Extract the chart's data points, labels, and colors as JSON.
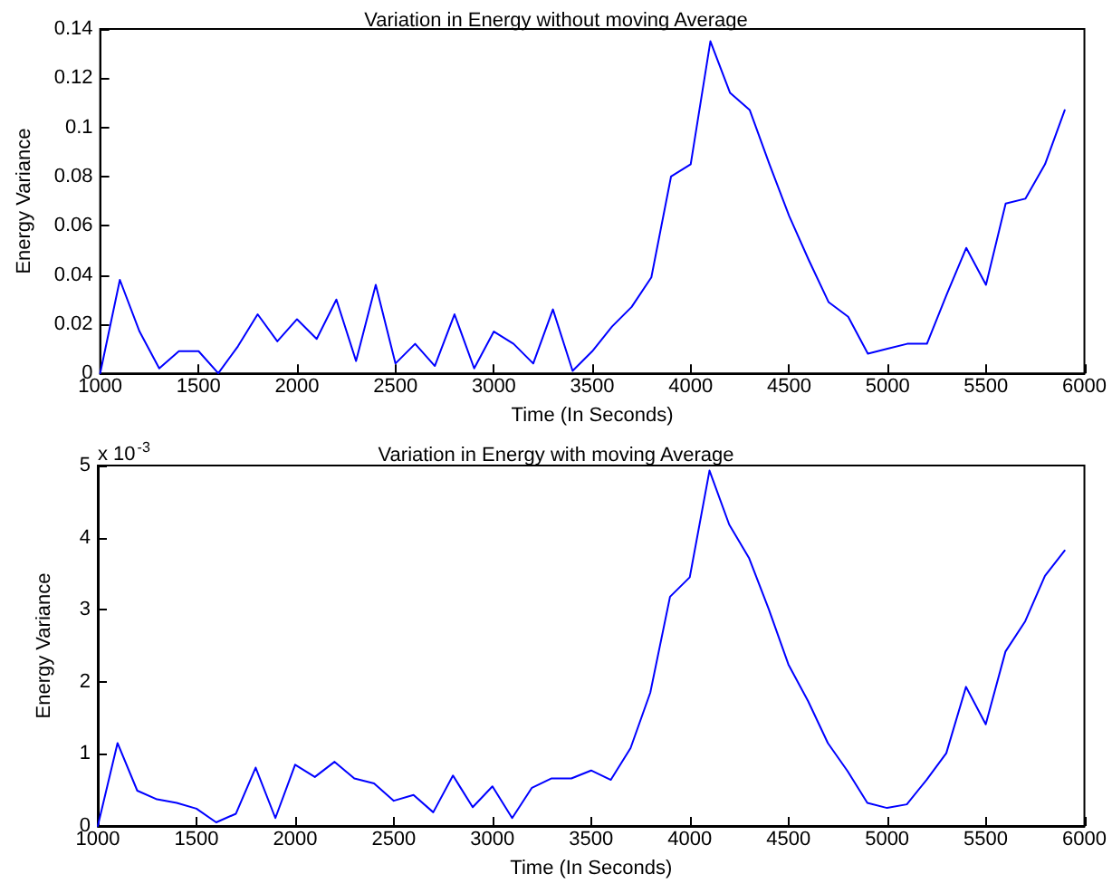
{
  "chart_data": [
    {
      "type": "line",
      "title": "Variation in Energy without moving Average",
      "xlabel": "Time (In Seconds)",
      "ylabel": "Energy Variance",
      "x": [
        1000,
        1100,
        1200,
        1300,
        1400,
        1500,
        1600,
        1700,
        1800,
        1900,
        2000,
        2100,
        2200,
        2300,
        2400,
        2500,
        2600,
        2700,
        2800,
        2900,
        3000,
        3100,
        3200,
        3300,
        3400,
        3500,
        3600,
        3700,
        3800,
        3900,
        4000,
        4100,
        4200,
        4300,
        4400,
        4500,
        4600,
        4700,
        4800,
        4900,
        5000,
        5100,
        5200,
        5300,
        5400,
        5500,
        5600,
        5700,
        5800,
        5900
      ],
      "series": [
        {
          "color": "#0000ff",
          "values": [
            0,
            0.038,
            0.017,
            0.002,
            0.009,
            0.009,
            0,
            0.011,
            0.024,
            0.013,
            0.022,
            0.014,
            0.03,
            0.005,
            0.036,
            0.004,
            0.012,
            0.003,
            0.024,
            0.002,
            0.017,
            0.012,
            0.004,
            0.026,
            0.001,
            0.009,
            0.019,
            0.027,
            0.039,
            0.08,
            0.085,
            0.135,
            0.114,
            0.107,
            0.085,
            0.064,
            0.046,
            0.029,
            0.023,
            0.008,
            0.01,
            0.012,
            0.012,
            0.032,
            0.051,
            0.036,
            0.069,
            0.071,
            0.085,
            0.107
          ]
        }
      ],
      "xlim": [
        1000,
        6000
      ],
      "xticks": [
        1000,
        1500,
        2000,
        2500,
        3000,
        3500,
        4000,
        4500,
        5000,
        5500,
        6000
      ],
      "ylim": [
        0,
        0.14
      ],
      "yticks": [
        0,
        0.02,
        0.04,
        0.06,
        0.08,
        0.1,
        0.12,
        0.14
      ],
      "grid": false
    },
    {
      "type": "line",
      "title": "Variation in Energy with moving Average",
      "xlabel": "Time (In Seconds)",
      "ylabel": "Energy Variance",
      "annotations": [
        "x 10$^{-3}$"
      ],
      "x": [
        1000,
        1100,
        1200,
        1300,
        1400,
        1500,
        1600,
        1700,
        1800,
        1900,
        2000,
        2100,
        2200,
        2300,
        2400,
        2500,
        2600,
        2700,
        2800,
        2900,
        3000,
        3100,
        3200,
        3300,
        3400,
        3500,
        3600,
        3700,
        3800,
        3900,
        4000,
        4100,
        4200,
        4300,
        4400,
        4500,
        4600,
        4700,
        4800,
        4900,
        5000,
        5100,
        5200,
        5300,
        5400,
        5500,
        5600,
        5700,
        5800,
        5900
      ],
      "series": [
        {
          "color": "#0000ff",
          "values": [
            0,
            1.15,
            0.49,
            0.37,
            0.32,
            0.24,
            0.05,
            0.17,
            0.81,
            0.11,
            0.85,
            0.68,
            0.89,
            0.66,
            0.59,
            0.35,
            0.43,
            0.19,
            0.7,
            0.26,
            0.55,
            0.11,
            0.53,
            0.66,
            0.66,
            0.77,
            0.64,
            1.08,
            1.85,
            3.18,
            3.45,
            4.93,
            4.18,
            3.72,
            3.01,
            2.24,
            1.73,
            1.15,
            0.76,
            0.32,
            0.25,
            0.3,
            0.64,
            1.01,
            1.93,
            1.41,
            2.42,
            2.84,
            3.47,
            3.82
          ]
        }
      ],
      "xlim": [
        1000,
        6000
      ],
      "xticks": [
        1000,
        1500,
        2000,
        2500,
        3000,
        3500,
        4000,
        4500,
        5000,
        5500,
        6000
      ],
      "ylim": [
        0,
        5
      ],
      "yticks": [
        0,
        1,
        2,
        3,
        4,
        5
      ],
      "grid": false
    }
  ]
}
